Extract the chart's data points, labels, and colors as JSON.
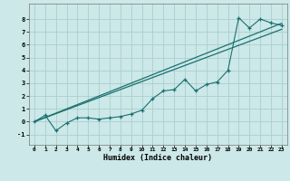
{
  "title": "",
  "xlabel": "Humidex (Indice chaleur)",
  "background_color": "#cce8e8",
  "grid_color": "#aacece",
  "line_color": "#1a7070",
  "xlim": [
    -0.5,
    23.5
  ],
  "ylim": [
    -1.8,
    9.2
  ],
  "yticks": [
    -1,
    0,
    1,
    2,
    3,
    4,
    5,
    6,
    7,
    8
  ],
  "xticks": [
    0,
    1,
    2,
    3,
    4,
    5,
    6,
    7,
    8,
    9,
    10,
    11,
    12,
    13,
    14,
    15,
    16,
    17,
    18,
    19,
    20,
    21,
    22,
    23
  ],
  "data_x": [
    0,
    1,
    2,
    3,
    4,
    5,
    6,
    7,
    8,
    9,
    10,
    11,
    12,
    13,
    14,
    15,
    16,
    17,
    18,
    19,
    20,
    21,
    22,
    23
  ],
  "data_y": [
    0.0,
    0.5,
    -0.7,
    -0.1,
    0.3,
    0.3,
    0.2,
    0.3,
    0.4,
    0.6,
    0.9,
    1.8,
    2.4,
    2.5,
    3.3,
    2.4,
    2.9,
    3.1,
    4.0,
    8.1,
    7.3,
    8.0,
    7.7,
    7.5
  ],
  "line1_x": [
    0,
    23
  ],
  "line1_y": [
    0.0,
    7.67
  ],
  "line2_x": [
    0,
    23
  ],
  "line2_y": [
    0.0,
    7.2
  ]
}
